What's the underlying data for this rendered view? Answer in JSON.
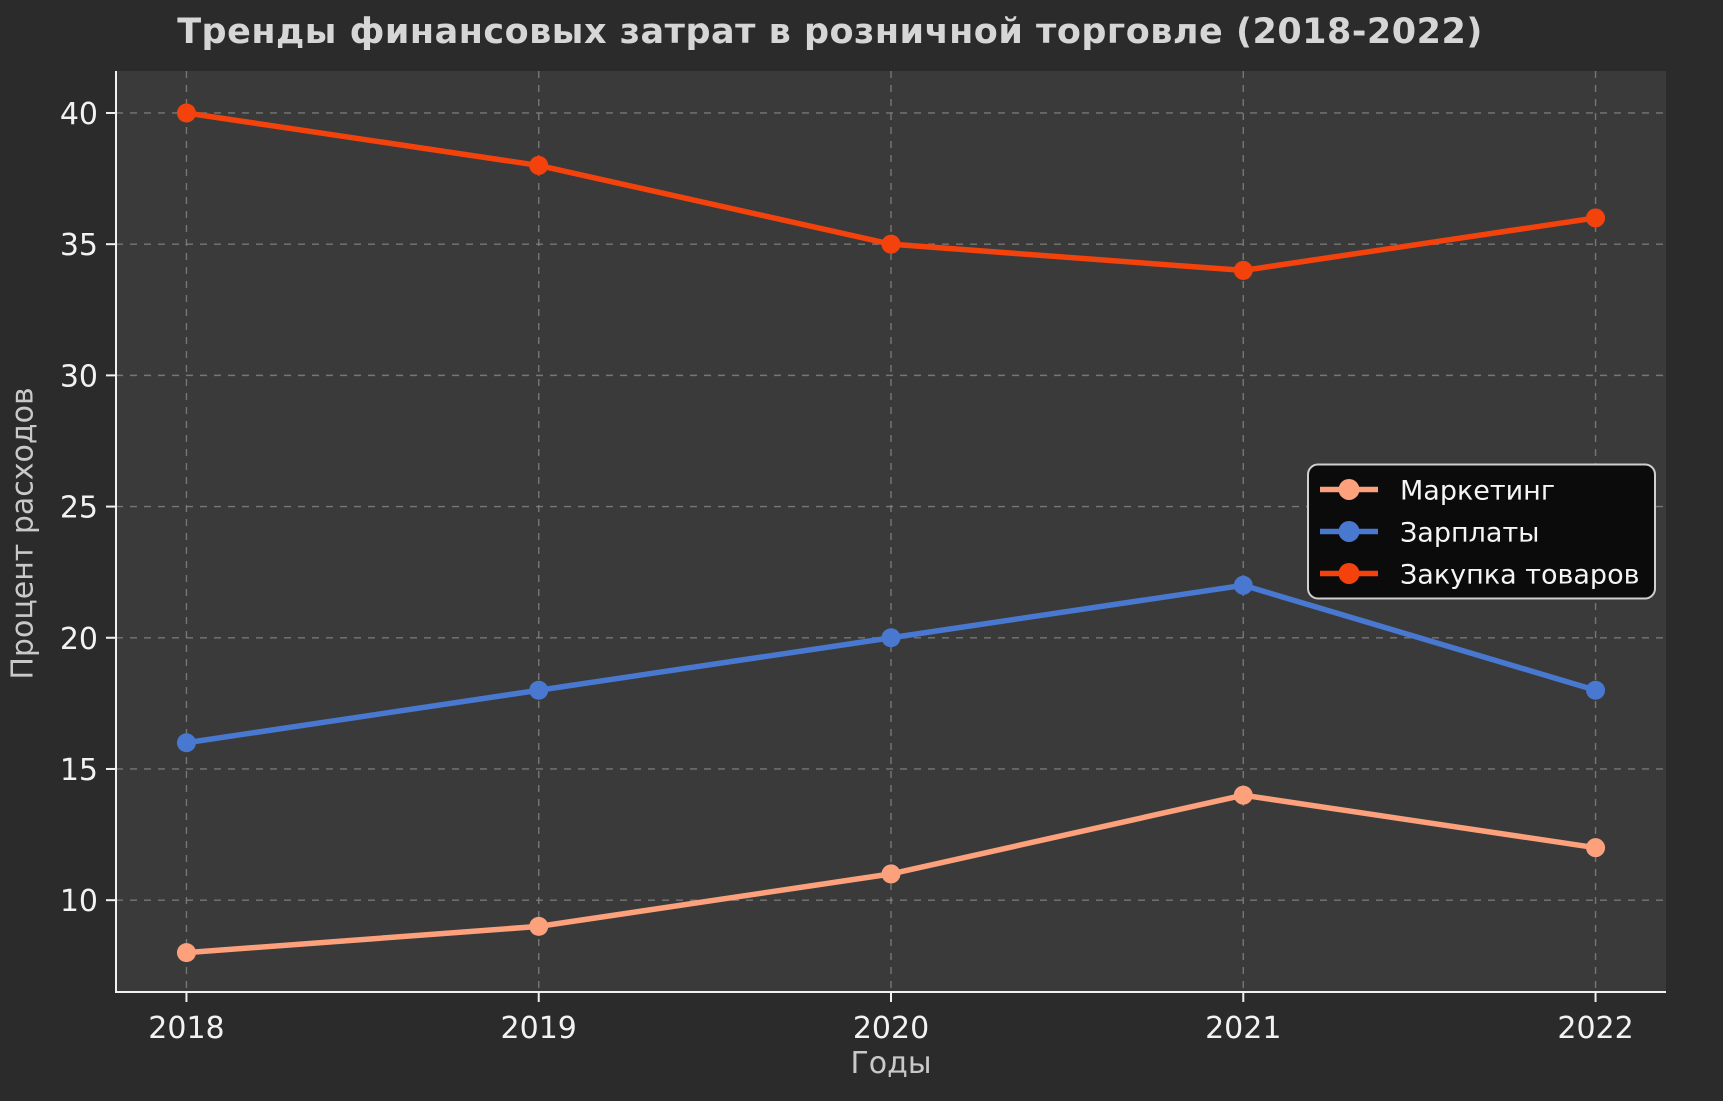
{
  "chart_data": {
    "type": "line",
    "title": "Тренды финансовых затрат в розничной торговле (2018-2022)",
    "xlabel": "Годы",
    "ylabel": "Процент расходов",
    "x": [
      2018,
      2019,
      2020,
      2021,
      2022
    ],
    "series": [
      {
        "name": "Маркетинг",
        "color": "#FCA17C",
        "values": [
          8,
          9,
          11,
          14,
          12
        ]
      },
      {
        "name": "Зарплаты",
        "color": "#4878D0",
        "values": [
          16,
          18,
          20,
          22,
          18
        ]
      },
      {
        "name": "Закупка товаров",
        "color": "#F4420D",
        "values": [
          40,
          38,
          35,
          34,
          36
        ]
      }
    ],
    "yticks": [
      10,
      15,
      20,
      25,
      30,
      35,
      40
    ],
    "xticks": [
      2018,
      2019,
      2020,
      2021,
      2022
    ],
    "xlim": [
      2017.8,
      2022.2
    ],
    "ylim": [
      6.5,
      41.6
    ],
    "grid": true,
    "grid_style": "dashed",
    "legend_position": "center right",
    "legend_items": [
      "Маркетинг",
      "Зарплаты",
      "Закупка товаров"
    ]
  },
  "colors": {
    "figure_background": "#2b2b2b",
    "plot_background": "#3a3a3a",
    "grid": "#8a8a8a",
    "spine": "#f0f0f0",
    "tick_label": "#f2f2f2",
    "axis_label": "#c9c9c9",
    "title": "#d6d6d6",
    "legend_background": "#0b0b0b",
    "legend_border": "#cfcfcf",
    "legend_text": "#f5f5f5"
  }
}
